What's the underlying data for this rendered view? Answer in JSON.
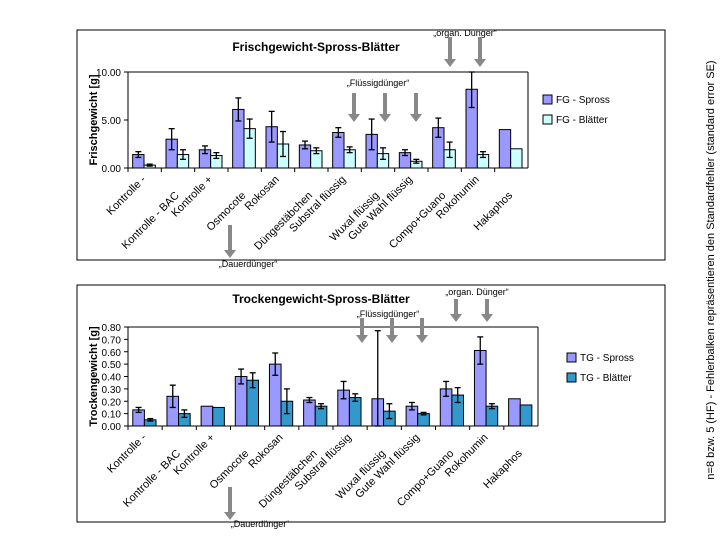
{
  "side_note": "n=8  bzw. 5 (HF) - Fehlerbalken repräsentieren den Standardfehler (standard error SE)",
  "chart_data": [
    {
      "type": "bar",
      "title": "Frischgewicht-Spross-Blätter",
      "ylabel": "Frischgewicht [g]",
      "xlabel": "",
      "ylim": [
        0,
        10
      ],
      "yticks": [
        "0.00",
        "5.00",
        "10.00"
      ],
      "categories": [
        "Kontrolle -",
        "Kontrolle - BAC",
        "Kontrolle +",
        "Osmocote",
        "Rokosan",
        "Düngestäbchen",
        "Substral flüssig",
        "Wuxal flüssig",
        "Gute Wahl flüssig",
        "Compo+Guano",
        "Rokohumin",
        "Hakaphos"
      ],
      "series": [
        {
          "name": "FG - Spross",
          "color": "#9999ff",
          "values": [
            1.4,
            3.0,
            1.9,
            6.1,
            4.3,
            2.4,
            3.7,
            3.5,
            1.6,
            4.2,
            8.2,
            4.0
          ],
          "errors": [
            0.3,
            1.1,
            0.4,
            1.2,
            1.6,
            0.4,
            0.5,
            1.6,
            0.3,
            1.0,
            1.9,
            0
          ]
        },
        {
          "name": "FG - Blätter",
          "color": "#ccffff",
          "values": [
            0.3,
            1.4,
            1.3,
            4.1,
            2.5,
            1.8,
            1.9,
            1.5,
            0.7,
            1.9,
            1.4,
            2.0
          ],
          "errors": [
            0.1,
            0.5,
            0.3,
            1.0,
            1.3,
            0.3,
            0.3,
            0.6,
            0.2,
            0.8,
            0.3,
            0
          ]
        }
      ],
      "annotations": {
        "top": "„organ. Dünger“",
        "middle": "„Flüssigdünger“",
        "bottom": "„Dauerdünger“"
      }
    },
    {
      "type": "bar",
      "title": "Trockengewicht-Spross-Blätter",
      "ylabel": "Trockengewicht [g]",
      "xlabel": "",
      "ylim": [
        0,
        0.8
      ],
      "yticks": [
        "0.00",
        "0.10",
        "0.20",
        "0.30",
        "0.40",
        "0.50",
        "0.60",
        "0.70",
        "0.80"
      ],
      "categories": [
        "Kontrolle -",
        "Kontrolle - BAC",
        "Kontrolle +",
        "Osmocote",
        "Rokosan",
        "Düngestäbchen",
        "Substral flüssig",
        "Wuxal flüssig",
        "Gute Wahl flüssig",
        "Compo+Guano",
        "Rokohumin",
        "Hakaphos"
      ],
      "series": [
        {
          "name": "TG - Spross",
          "color": "#9999ff",
          "values": [
            0.13,
            0.24,
            0.16,
            0.4,
            0.5,
            0.21,
            0.29,
            0.22,
            0.16,
            0.3,
            0.61,
            0.22
          ],
          "errors": [
            0.02,
            0.09,
            0,
            0.06,
            0.09,
            0.02,
            0.07,
            0.55,
            0.03,
            0.06,
            0.11,
            0
          ]
        },
        {
          "name": "TG - Blätter",
          "color": "#3399cc",
          "values": [
            0.05,
            0.1,
            0.15,
            0.37,
            0.2,
            0.16,
            0.23,
            0.12,
            0.1,
            0.25,
            0.16,
            0.17
          ],
          "errors": [
            0.01,
            0.03,
            0,
            0.06,
            0.1,
            0.02,
            0.03,
            0.06,
            0.01,
            0.06,
            0.02,
            0
          ]
        }
      ],
      "annotations": {
        "top": "„organ. Dünger“",
        "middle": "„Flüssigdünger“",
        "bottom": "„Dauerdünger“"
      }
    }
  ]
}
